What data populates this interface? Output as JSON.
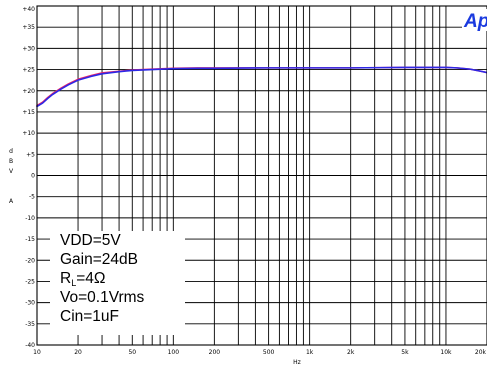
{
  "chart_data": {
    "type": "line",
    "title": "",
    "xlabel": "Hz",
    "ylabel": "dB",
    "xscale": "log",
    "xlim": [
      10,
      20000
    ],
    "ylim": [
      -40,
      40
    ],
    "grid": true,
    "x_ticks": [
      {
        "value": 10,
        "label": "10"
      },
      {
        "value": 20,
        "label": "20"
      },
      {
        "value": 50,
        "label": "50"
      },
      {
        "value": 100,
        "label": "100"
      },
      {
        "value": 200,
        "label": "200"
      },
      {
        "value": 500,
        "label": "500"
      },
      {
        "value": 1000,
        "label": "1k"
      },
      {
        "value": 2000,
        "label": "2k"
      },
      {
        "value": 5000,
        "label": "5k"
      },
      {
        "value": 10000,
        "label": "10k"
      },
      {
        "value": 20000,
        "label": "20k"
      }
    ],
    "y_ticks": [
      {
        "value": 40,
        "label": "+40"
      },
      {
        "value": 35,
        "label": "+35"
      },
      {
        "value": 30,
        "label": "+30"
      },
      {
        "value": 25,
        "label": "+25"
      },
      {
        "value": 20,
        "label": "+20"
      },
      {
        "value": 15,
        "label": "+15"
      },
      {
        "value": 10,
        "label": "+10"
      },
      {
        "value": 5,
        "label": "+5"
      },
      {
        "value": 0,
        "label": "0"
      },
      {
        "value": -5,
        "label": "-5"
      },
      {
        "value": -10,
        "label": "-10"
      },
      {
        "value": -15,
        "label": "-15"
      },
      {
        "value": -20,
        "label": "-20"
      },
      {
        "value": -25,
        "label": "-25"
      },
      {
        "value": -30,
        "label": "-30"
      },
      {
        "value": -35,
        "label": "-35"
      },
      {
        "value": -40,
        "label": "-40"
      }
    ],
    "ylabel_letters": [
      "d",
      "B",
      "V",
      "A"
    ],
    "series": [
      {
        "color": "#e8226a",
        "x": [
          10,
          11,
          12,
          13,
          15,
          17,
          20,
          25,
          30,
          40,
          50,
          70,
          100,
          150,
          200,
          500,
          1000,
          2000,
          5000,
          10000,
          12000,
          15000,
          18000,
          20000
        ],
        "y": [
          16.5,
          17.3,
          18.4,
          19.3,
          20.6,
          21.6,
          22.7,
          23.6,
          24.2,
          24.6,
          24.9,
          25.1,
          25.3,
          25.4,
          25.4,
          25.4,
          25.4,
          25.4,
          25.5,
          25.5,
          25.4,
          25.1,
          24.6,
          24.3
        ]
      },
      {
        "color": "#2c28e6",
        "x": [
          10,
          11,
          12,
          13,
          15,
          17,
          20,
          25,
          30,
          40,
          50,
          70,
          100,
          150,
          200,
          500,
          1000,
          2000,
          5000,
          10000,
          12000,
          15000,
          18000,
          20000
        ],
        "y": [
          16.3,
          17.1,
          18.2,
          19.1,
          20.4,
          21.4,
          22.5,
          23.4,
          24.0,
          24.5,
          24.8,
          25.0,
          25.2,
          25.3,
          25.3,
          25.4,
          25.4,
          25.4,
          25.5,
          25.5,
          25.4,
          25.1,
          24.6,
          24.3
        ]
      }
    ]
  },
  "annotation_lines": [
    "VDD=5V",
    "Gain=24dB",
    "RL=4Ω",
    "Vo=0.1Vrms",
    "Cin=1uF"
  ],
  "brand_mark": "Ap"
}
